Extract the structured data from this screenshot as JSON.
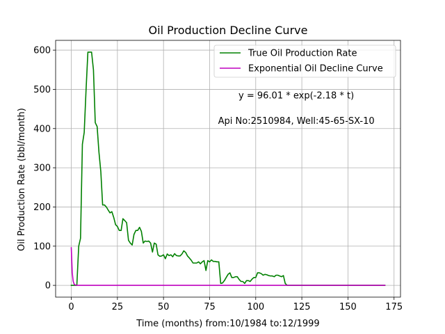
{
  "chart_data": {
    "type": "line",
    "title": "Oil Production Decline Curve",
    "xlabel": "Time (months) from:10/1984 to:12/1999",
    "ylabel": "Oil Production Rate (bbl/month)",
    "xlim": [
      -8.5,
      178.5
    ],
    "ylim": [
      -30,
      625
    ],
    "xticks": [
      0,
      25,
      50,
      75,
      100,
      125,
      150,
      175
    ],
    "yticks": [
      0,
      100,
      200,
      300,
      400,
      500,
      600
    ],
    "grid": true,
    "legend_position": "top-right",
    "annotations": [
      {
        "text": "y = 96.01 * exp(-2.18 * t)",
        "x": 122,
        "y": 485
      },
      {
        "text": "Api No:2510984, Well:45-65-SX-10",
        "x": 122,
        "y": 420
      }
    ],
    "series": [
      {
        "name": "True Oil Production Rate",
        "color": "#008000",
        "x": [
          0,
          1,
          2,
          3,
          4,
          5,
          6,
          7,
          8,
          9,
          10,
          11,
          12,
          13,
          14,
          15,
          16,
          17,
          18,
          19,
          20,
          21,
          22,
          23,
          24,
          25,
          26,
          27,
          28,
          29,
          30,
          31,
          32,
          33,
          34,
          35,
          36,
          37,
          38,
          39,
          40,
          41,
          42,
          43,
          44,
          45,
          46,
          47,
          48,
          49,
          50,
          51,
          52,
          53,
          54,
          55,
          56,
          57,
          58,
          59,
          60,
          61,
          62,
          63,
          64,
          65,
          66,
          67,
          68,
          69,
          70,
          71,
          72,
          73,
          74,
          75,
          76,
          77,
          78,
          79,
          80,
          81,
          82,
          83,
          84,
          85,
          86,
          87,
          88,
          89,
          90,
          91,
          92,
          93,
          94,
          95,
          96,
          97,
          98,
          99,
          100,
          101,
          102,
          103,
          104,
          105,
          106,
          107,
          108,
          109,
          110,
          111,
          112,
          113,
          114,
          115,
          116,
          117,
          118,
          119,
          120,
          125,
          130,
          140,
          150,
          160,
          170
        ],
        "values": [
          0,
          0,
          0,
          0,
          100,
          120,
          360,
          390,
          500,
          595,
          595,
          595,
          550,
          415,
          405,
          340,
          290,
          205,
          205,
          200,
          192,
          185,
          188,
          173,
          155,
          150,
          140,
          140,
          170,
          165,
          160,
          115,
          108,
          103,
          130,
          140,
          140,
          148,
          138,
          108,
          113,
          112,
          113,
          108,
          85,
          108,
          105,
          78,
          74,
          75,
          78,
          68,
          80,
          76,
          78,
          73,
          81,
          76,
          75,
          75,
          80,
          88,
          84,
          75,
          70,
          64,
          57,
          57,
          57,
          60,
          55,
          60,
          63,
          38,
          63,
          60,
          65,
          61,
          61,
          60,
          60,
          5,
          6,
          12,
          20,
          28,
          32,
          20,
          20,
          22,
          22,
          15,
          10,
          10,
          5,
          12,
          12,
          10,
          16,
          20,
          20,
          32,
          32,
          30,
          26,
          28,
          27,
          25,
          24,
          24,
          22,
          26,
          26,
          24,
          22,
          25,
          5,
          0,
          0,
          0,
          0,
          0,
          0,
          0,
          0,
          0,
          0
        ]
      },
      {
        "name": "Exponential Oil Decline Curve",
        "color": "#bf00bf",
        "x": [
          0,
          0.5,
          1,
          1.5,
          2,
          3,
          4,
          5,
          10,
          20,
          40,
          60,
          80,
          100,
          120,
          140,
          160,
          170
        ],
        "values": [
          96.01,
          32.29,
          10.86,
          3.65,
          1.23,
          0.14,
          0.02,
          0.0,
          0,
          0,
          0,
          0,
          0,
          0,
          0,
          0,
          0,
          0
        ]
      }
    ]
  }
}
